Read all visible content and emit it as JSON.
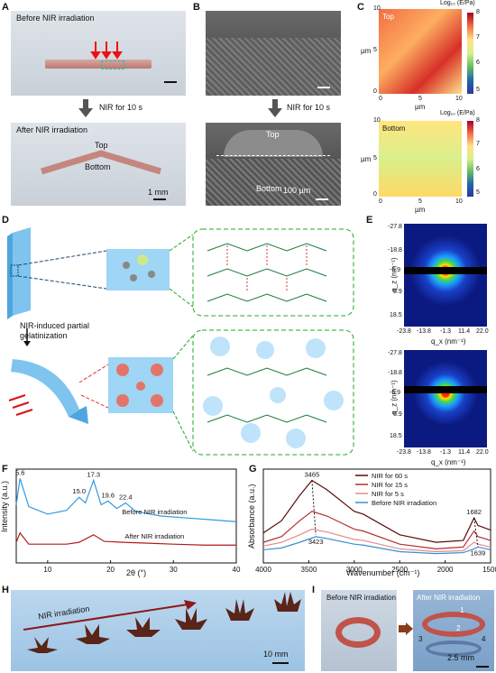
{
  "panels": {
    "A": {
      "label": "A",
      "before": "Before NIR irradiation",
      "after": "After NIR irradiation",
      "top": "Top",
      "bottom": "Bottom",
      "scale": "1 mm",
      "step": "NIR for 10 s"
    },
    "B": {
      "label": "B",
      "top": "Top",
      "bottom": "Bottom",
      "scale": "100 µm",
      "step": "NIR for 10 s"
    },
    "C": {
      "label": "C",
      "top_tag": "Top",
      "bottom_tag": "Bottom",
      "ylabel": "µm",
      "xlabel": "µm",
      "x_ticks": [
        "0",
        "5",
        "10"
      ],
      "y_ticks": [
        "0",
        "5",
        "10"
      ],
      "cbar_title": "Log₁₀ (E/Pa)",
      "cbar_ticks": [
        "8",
        "7",
        "6",
        "5"
      ],
      "cbar_colors": [
        "#a50026",
        "#f46d43",
        "#fee08b",
        "#d9ef8b",
        "#66bd63",
        "#2166ac",
        "#313695"
      ]
    },
    "D": {
      "label": "D",
      "step": "NIR-induced partial gelatinization"
    },
    "E": {
      "label": "E",
      "y_label": "q_z (nm⁻¹)",
      "x_label": "q_x (nm⁻¹)",
      "y_ticks": [
        "-27.8",
        "-18.8",
        "-6.9",
        "6.9",
        "18.5"
      ],
      "x_ticks": [
        "-23.8",
        "-13.8",
        "-1.3",
        "11.4",
        "22.0"
      ]
    },
    "F": {
      "label": "F",
      "ylabel": "Intensity (a.u.)",
      "xlabel": "2θ (°)",
      "x_ticks": [
        "10",
        "20",
        "30",
        "40"
      ],
      "peaks": [
        "5.6",
        "15.0",
        "17.3",
        "19.6",
        "22.4"
      ],
      "line_before": "Before NIR irradiation",
      "line_after": "After NIR irradiation"
    },
    "G": {
      "label": "G",
      "ylabel": "Absorbance (a.u.)",
      "xlabel": "Wavenumber (cm⁻¹)",
      "x_ticks": [
        "4000",
        "3500",
        "3000",
        "2500",
        "2000",
        "1500"
      ],
      "legend": [
        {
          "name": "NIR for 60 s",
          "color": "#5a0a0a"
        },
        {
          "name": "NIR for 15 s",
          "color": "#b03030"
        },
        {
          "name": "NIR for 5 s",
          "color": "#e58c8c"
        },
        {
          "name": "Before NIR irradiation",
          "color": "#3a8fd0"
        }
      ],
      "annotations": [
        "3465",
        "3423",
        "1682",
        "1639"
      ]
    },
    "H": {
      "label": "H",
      "arrow_text": "NIR irradiation",
      "scale": "10 mm"
    },
    "I": {
      "label": "I",
      "before": "Before NIR irradiation",
      "after": "After NIR irradiation",
      "scale": "2.5 mm",
      "numbers": [
        "1",
        "2",
        "3",
        "4"
      ]
    }
  },
  "chart_data": [
    {
      "type": "line",
      "panel": "F",
      "title": "",
      "xlabel": "2θ (°)",
      "ylabel": "Intensity (a.u.)",
      "xlim": [
        5,
        40
      ],
      "series": [
        {
          "name": "Before NIR irradiation",
          "x": [
            5,
            5.6,
            7,
            10,
            13,
            15,
            16,
            17.3,
            18.5,
            19.6,
            21,
            22.4,
            24,
            28,
            32,
            36,
            40
          ],
          "y": [
            0.62,
            0.9,
            0.6,
            0.52,
            0.56,
            0.7,
            0.64,
            0.88,
            0.62,
            0.66,
            0.58,
            0.64,
            0.55,
            0.5,
            0.48,
            0.46,
            0.44
          ]
        },
        {
          "name": "After NIR irradiation",
          "x": [
            5,
            5.6,
            7,
            10,
            13,
            15,
            17.3,
            19,
            22,
            26,
            30,
            35,
            40
          ],
          "y": [
            0.22,
            0.32,
            0.2,
            0.2,
            0.2,
            0.22,
            0.3,
            0.23,
            0.22,
            0.21,
            0.2,
            0.19,
            0.19
          ]
        }
      ]
    },
    {
      "type": "line",
      "panel": "G",
      "title": "",
      "xlabel": "Wavenumber (cm⁻¹)",
      "ylabel": "Absorbance (a.u.)",
      "xlim": [
        4000,
        1500
      ],
      "series": [
        {
          "name": "NIR for 60 s",
          "x": [
            4000,
            3800,
            3600,
            3465,
            3300,
            3000,
            2900,
            2500,
            2100,
            1800,
            1682,
            1639,
            1500
          ],
          "y": [
            0.32,
            0.45,
            0.72,
            0.88,
            0.78,
            0.55,
            0.52,
            0.3,
            0.22,
            0.24,
            0.48,
            0.4,
            0.35
          ]
        },
        {
          "name": "NIR for 15 s",
          "x": [
            4000,
            3800,
            3600,
            3465,
            3300,
            3000,
            2900,
            2500,
            2100,
            1800,
            1682,
            1639,
            1500
          ],
          "y": [
            0.22,
            0.28,
            0.45,
            0.55,
            0.5,
            0.36,
            0.34,
            0.2,
            0.15,
            0.17,
            0.34,
            0.28,
            0.24
          ]
        },
        {
          "name": "NIR for 5 s",
          "x": [
            4000,
            3800,
            3600,
            3465,
            3300,
            3000,
            2900,
            2500,
            2100,
            1800,
            1682,
            1639,
            1500
          ],
          "y": [
            0.18,
            0.22,
            0.3,
            0.36,
            0.33,
            0.25,
            0.24,
            0.15,
            0.12,
            0.13,
            0.22,
            0.2,
            0.17
          ]
        },
        {
          "name": "Before NIR irradiation",
          "x": [
            4000,
            3800,
            3600,
            3423,
            3300,
            3000,
            2900,
            2500,
            2100,
            1800,
            1682,
            1639,
            1500
          ],
          "y": [
            0.14,
            0.16,
            0.22,
            0.28,
            0.26,
            0.2,
            0.19,
            0.12,
            0.1,
            0.11,
            0.15,
            0.17,
            0.14
          ]
        }
      ]
    }
  ]
}
